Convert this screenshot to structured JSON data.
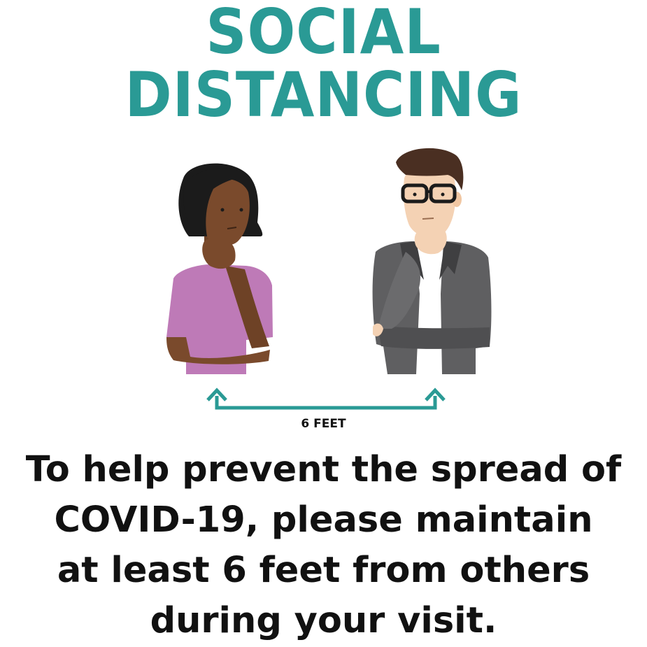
{
  "title": {
    "line1": "SOCIAL",
    "line2": "DISTANCING"
  },
  "distance_label": "6 FEET",
  "message": {
    "line1": "To help prevent the spread of",
    "line2": "COVID-19, please maintain",
    "line3": "at least 6 feet from others",
    "line4": "during your visit."
  },
  "colors": {
    "title": "#2a9a95",
    "arrow": "#2a9a95",
    "text": "#111111",
    "woman_shirt": "#be7ab7",
    "woman_skin": "#7a4a2c",
    "man_jacket": "#5f5f61",
    "man_skin": "#f4d2b4"
  },
  "icons": [
    "woman-figure-icon",
    "man-figure-icon",
    "double-arrow-icon"
  ]
}
